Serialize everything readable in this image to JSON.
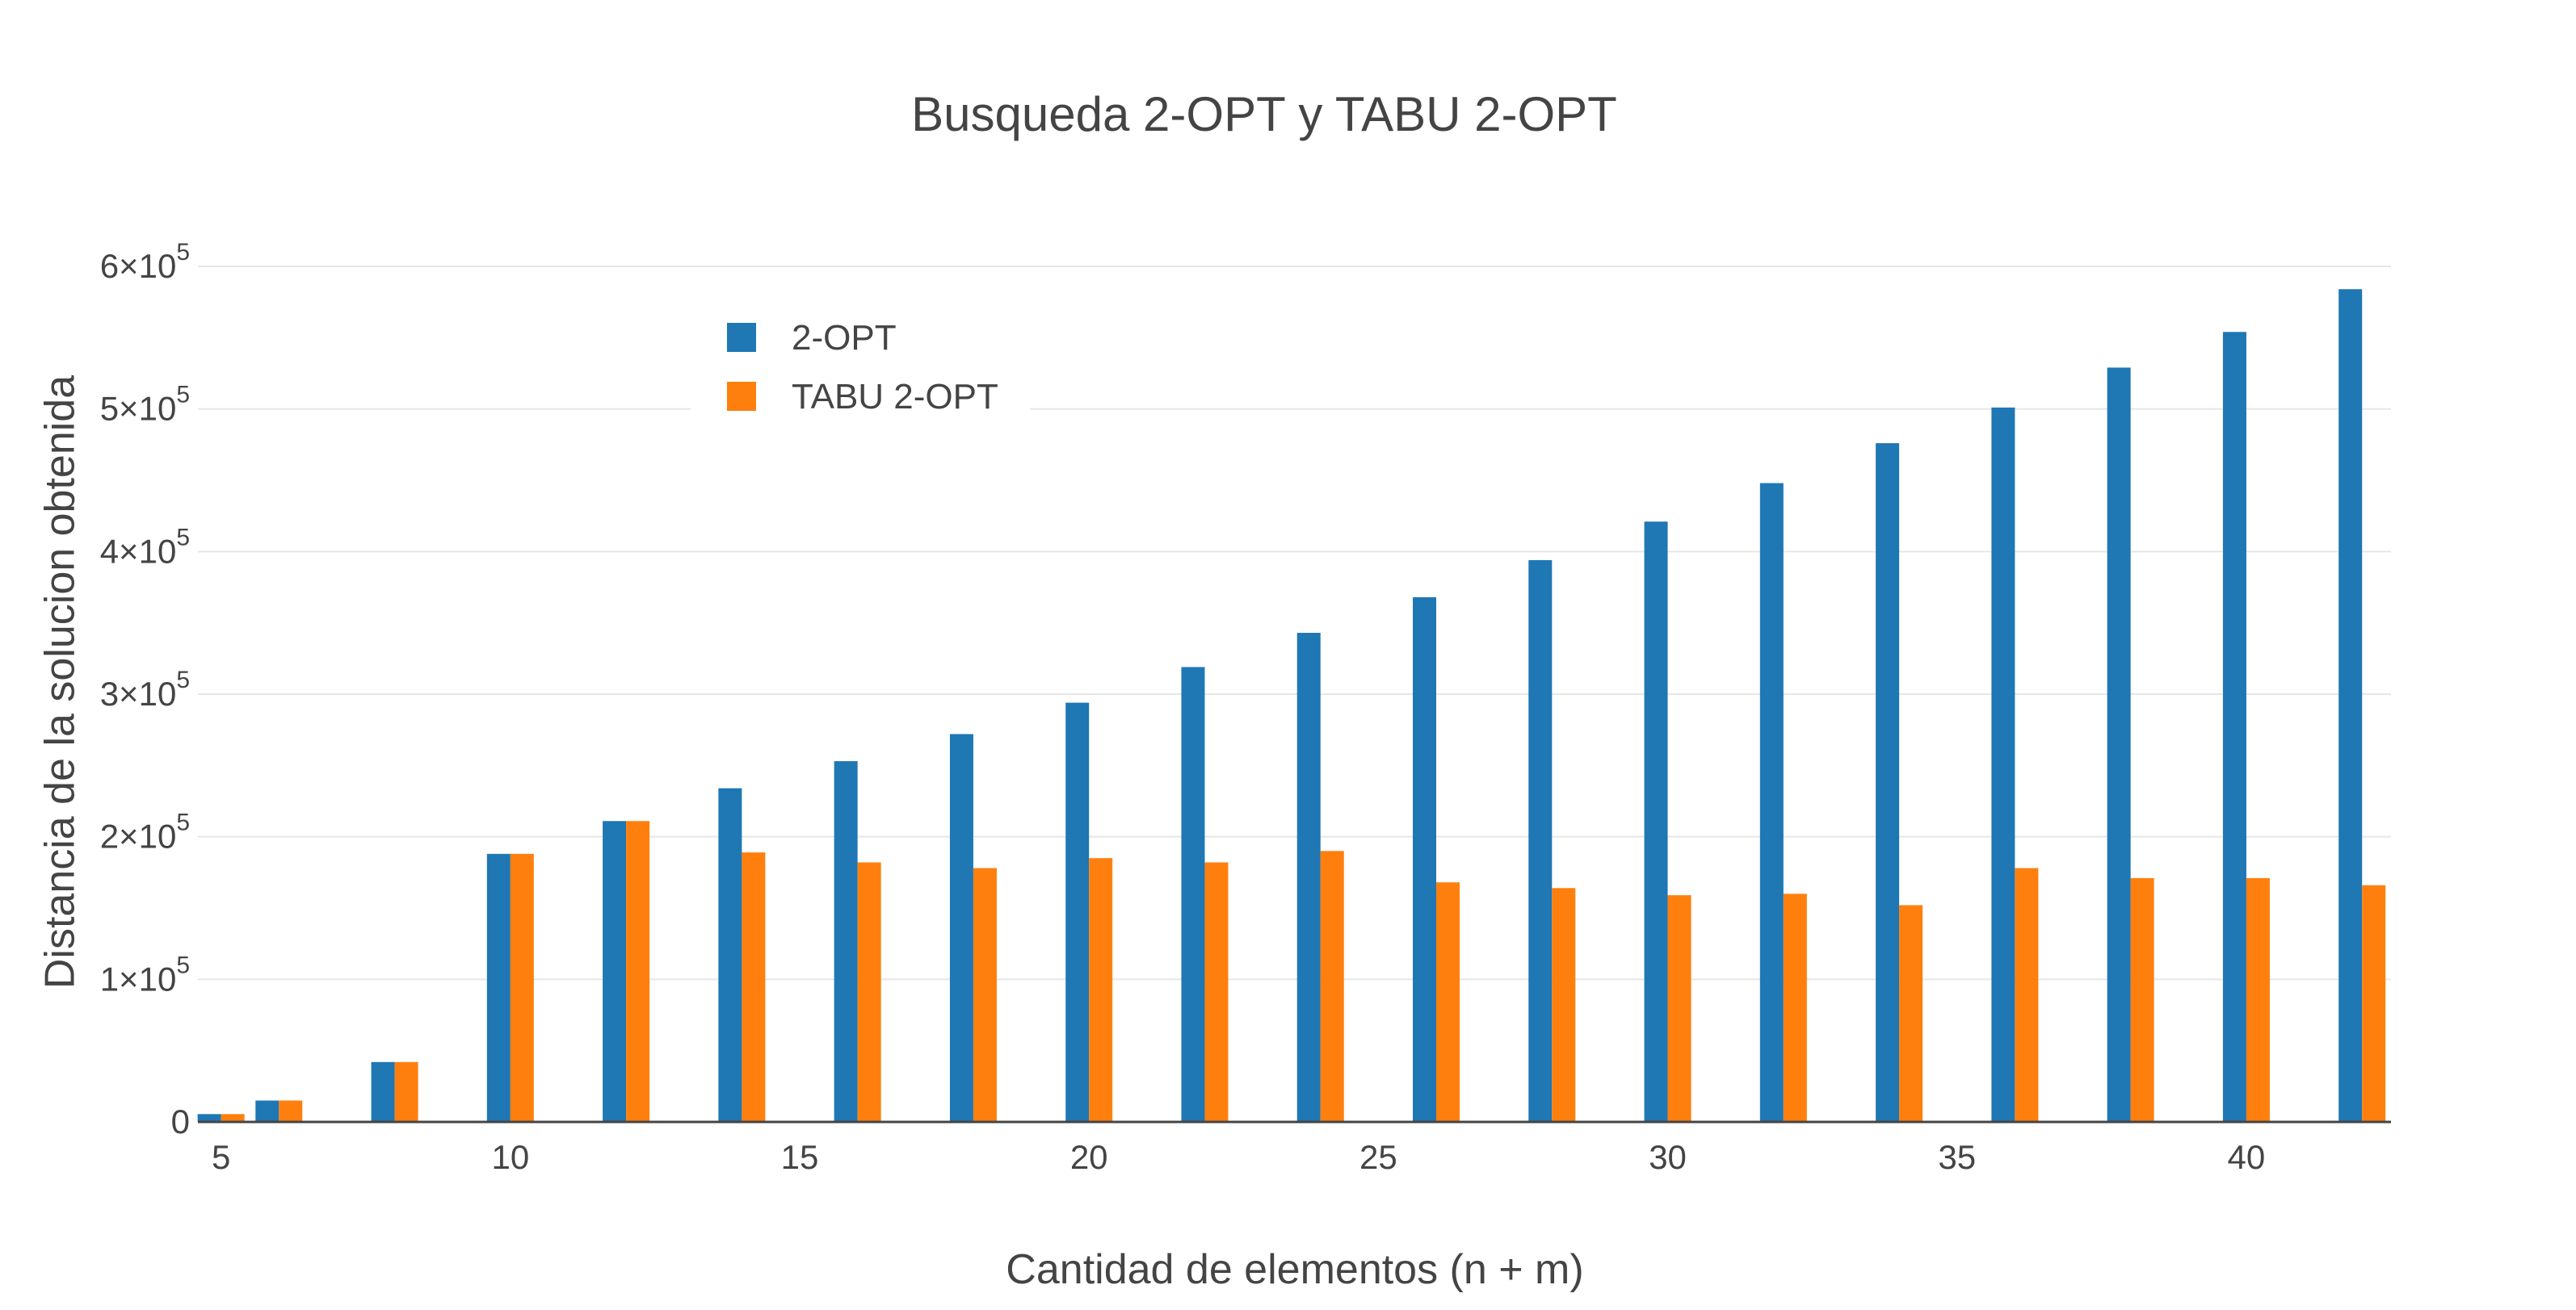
{
  "chart_data": {
    "type": "bar",
    "title": "Busqueda 2-OPT y TABU 2-OPT",
    "xlabel": "Cantidad de elementos (n + m)",
    "ylabel": "Distancia de la solucion obtenida",
    "x": [
      5,
      6,
      8,
      10,
      12,
      14,
      16,
      18,
      20,
      22,
      24,
      26,
      28,
      30,
      32,
      34,
      36,
      38,
      40,
      42
    ],
    "xlim": [
      4.6,
      42.5
    ],
    "ylim": [
      0,
      600000
    ],
    "x_ticks": [
      5,
      10,
      15,
      20,
      25,
      30,
      35,
      40
    ],
    "x_tick_labels": [
      "5",
      "10",
      "15",
      "20",
      "25",
      "30",
      "35",
      "40"
    ],
    "y_ticks": [
      0,
      100000,
      200000,
      300000,
      400000,
      500000,
      600000
    ],
    "y_tick_labels": [
      {
        "mantissa": "0",
        "exp": ""
      },
      {
        "mantissa": "1×10",
        "exp": "5"
      },
      {
        "mantissa": "2×10",
        "exp": "5"
      },
      {
        "mantissa": "3×10",
        "exp": "5"
      },
      {
        "mantissa": "4×10",
        "exp": "5"
      },
      {
        "mantissa": "5×10",
        "exp": "5"
      },
      {
        "mantissa": "6×10",
        "exp": "5"
      }
    ],
    "grid": true,
    "legend_position": "top-left",
    "series": [
      {
        "name": "2-OPT",
        "color": "#1f77b4",
        "values": [
          5500,
          15000,
          42000,
          188000,
          211000,
          234000,
          253000,
          272000,
          294000,
          319000,
          343000,
          368000,
          394000,
          421000,
          448000,
          476000,
          501000,
          529000,
          554000,
          584000
        ]
      },
      {
        "name": "TABU 2-OPT",
        "color": "#ff7f0e",
        "values": [
          5500,
          15000,
          42000,
          188000,
          211000,
          189000,
          182000,
          178000,
          185000,
          182000,
          190000,
          168000,
          164000,
          159000,
          160000,
          152000,
          178000,
          171000,
          171000,
          166000
        ]
      }
    ]
  }
}
